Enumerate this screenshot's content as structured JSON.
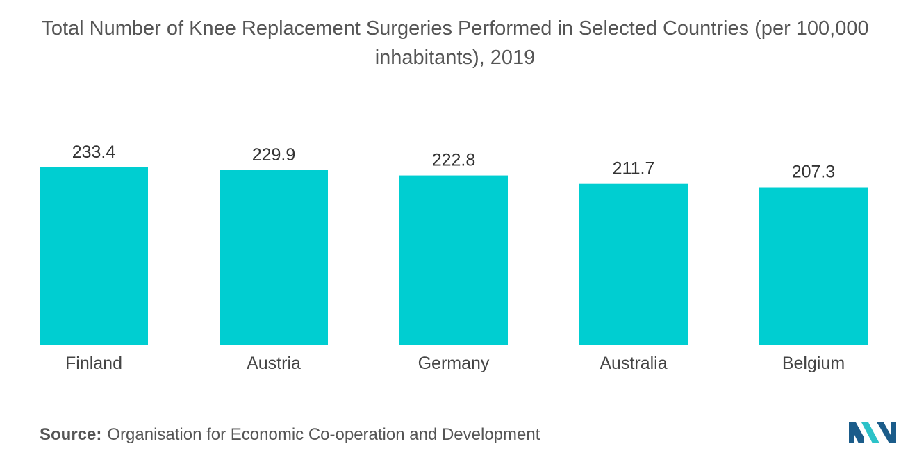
{
  "chart_data": {
    "type": "bar",
    "title": "Total Number of Knee Replacement Surgeries Performed in Selected Countries (per 100,000 inhabitants), 2019",
    "categories": [
      "Finland",
      "Austria",
      "Germany",
      "Australia",
      "Belgium"
    ],
    "values": [
      233.4,
      229.9,
      222.8,
      211.7,
      207.3
    ],
    "value_labels": [
      "233.4",
      "229.9",
      "222.8",
      "211.7",
      "207.3"
    ],
    "xlabel": "",
    "ylabel": "",
    "grid": false,
    "legend": "none"
  },
  "source": {
    "label": "Source:",
    "text": "Organisation for Economic Co-operation and Development"
  },
  "colors": {
    "bar": "#00CED1",
    "logo_dark": "#1B5C8A",
    "logo_light": "#2CC2C8"
  },
  "logo": {
    "icon": "mordor-intelligence-logo-icon"
  }
}
